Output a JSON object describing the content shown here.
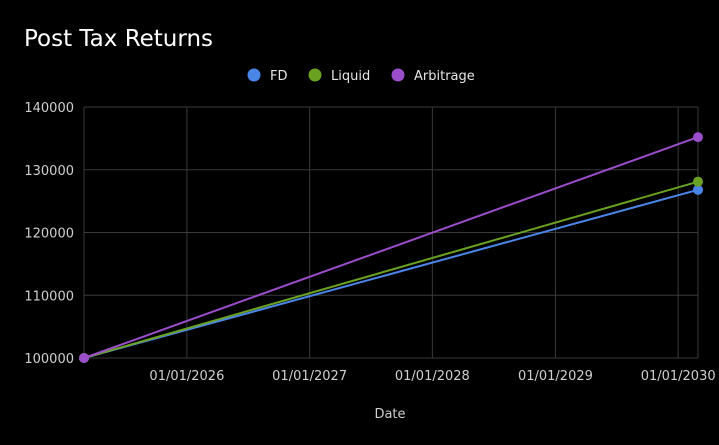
{
  "chart_data": {
    "type": "line",
    "title": "Post Tax Returns",
    "xlabel": "Date",
    "ylabel": "",
    "x_start": "2025-03-01",
    "x_end": "2030-03-01",
    "ylim": [
      100000,
      140000
    ],
    "y_ticks": [
      "100000",
      "110000",
      "120000",
      "130000",
      "140000"
    ],
    "x_tick_labels": [
      "01/01/2026",
      "01/01/2027",
      "01/01/2028",
      "01/01/2029",
      "01/01/2030"
    ],
    "x_tick_dates": [
      "2026-01-01",
      "2027-01-01",
      "2028-01-01",
      "2029-01-01",
      "2030-01-01"
    ],
    "grid": true,
    "legend_position": "top",
    "series": [
      {
        "name": "FD",
        "color": "#4a86e8",
        "points": [
          {
            "x": "2025-03-01",
            "y": 100000
          },
          {
            "x": "2030-03-01",
            "y": 126800
          }
        ]
      },
      {
        "name": "Liquid",
        "color": "#6aa121",
        "points": [
          {
            "x": "2025-03-01",
            "y": 100000
          },
          {
            "x": "2030-03-01",
            "y": 128100
          }
        ]
      },
      {
        "name": "Arbitrage",
        "color": "#9b4dca",
        "points": [
          {
            "x": "2025-03-01",
            "y": 100000
          },
          {
            "x": "2030-03-01",
            "y": 135200
          }
        ]
      }
    ]
  }
}
